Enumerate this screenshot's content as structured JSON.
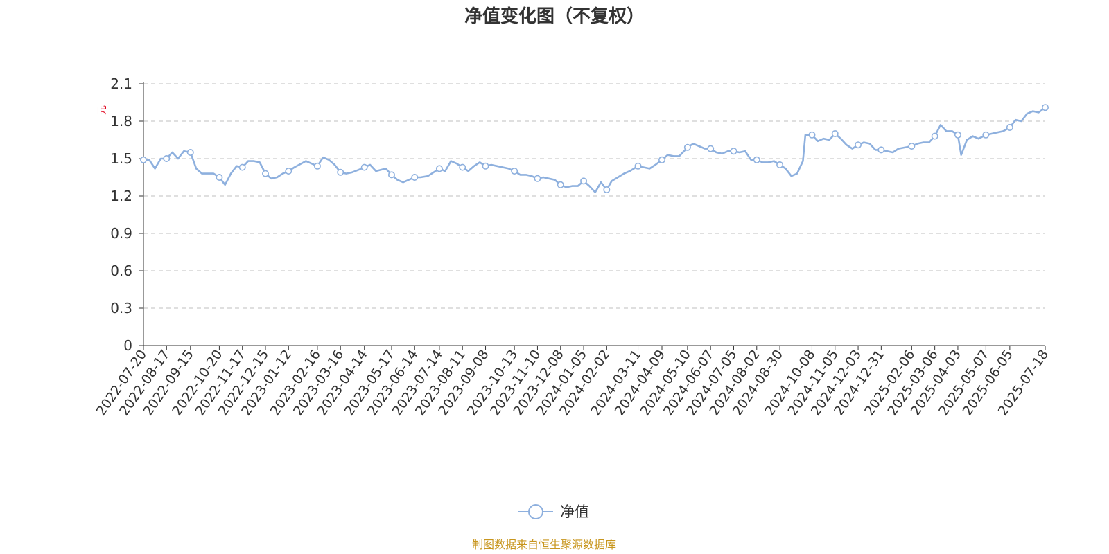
{
  "chart_data": {
    "type": "line",
    "title": "净值变化图（不复权）",
    "ylabel": "元",
    "ylim": [
      0,
      2.1
    ],
    "yticks": [
      "0",
      "0.3",
      "0.6",
      "0.9",
      "1.2",
      "1.5",
      "1.8",
      "2.1"
    ],
    "grid": true,
    "legend_position": "bottom-center",
    "x_start": "2022-07-20",
    "x_end": "2025-07-18",
    "xtick_labels": [
      "2022-07-20",
      "2022-08-17",
      "2022-09-15",
      "2022-10-20",
      "2022-11-17",
      "2022-12-15",
      "2023-01-12",
      "2023-02-16",
      "2023-03-16",
      "2023-04-14",
      "2023-05-17",
      "2023-06-14",
      "2023-07-14",
      "2023-08-11",
      "2023-09-08",
      "2023-10-13",
      "2023-11-10",
      "2023-12-08",
      "2024-01-05",
      "2024-02-02",
      "2024-03-11",
      "2024-04-09",
      "2024-05-10",
      "2024-06-07",
      "2024-07-05",
      "2024-08-02",
      "2024-08-30",
      "2024-10-08",
      "2024-11-05",
      "2024-12-03",
      "2024-12-31",
      "2025-02-06",
      "2025-03-06",
      "2025-04-03",
      "2025-05-07",
      "2025-06-05",
      "2025-07-18"
    ],
    "series": [
      {
        "name": "净值",
        "color": "#8eb0de",
        "x": [
          "2022-07-20",
          "2022-07-27",
          "2022-08-03",
          "2022-08-10",
          "2022-08-17",
          "2022-08-24",
          "2022-08-31",
          "2022-09-07",
          "2022-09-15",
          "2022-09-22",
          "2022-09-29",
          "2022-10-13",
          "2022-10-20",
          "2022-10-27",
          "2022-11-03",
          "2022-11-10",
          "2022-11-17",
          "2022-11-24",
          "2022-12-01",
          "2022-12-08",
          "2022-12-15",
          "2022-12-22",
          "2022-12-29",
          "2023-01-05",
          "2023-01-12",
          "2023-01-19",
          "2023-02-02",
          "2023-02-09",
          "2023-02-16",
          "2023-02-23",
          "2023-03-02",
          "2023-03-09",
          "2023-03-16",
          "2023-03-23",
          "2023-03-30",
          "2023-04-07",
          "2023-04-14",
          "2023-04-21",
          "2023-04-28",
          "2023-05-10",
          "2023-05-17",
          "2023-05-24",
          "2023-05-31",
          "2023-06-07",
          "2023-06-14",
          "2023-06-21",
          "2023-06-30",
          "2023-07-07",
          "2023-07-14",
          "2023-07-21",
          "2023-07-28",
          "2023-08-04",
          "2023-08-11",
          "2023-08-18",
          "2023-08-25",
          "2023-09-01",
          "2023-09-08",
          "2023-09-15",
          "2023-09-22",
          "2023-10-06",
          "2023-10-13",
          "2023-10-20",
          "2023-10-27",
          "2023-11-03",
          "2023-11-10",
          "2023-11-17",
          "2023-11-24",
          "2023-12-01",
          "2023-12-08",
          "2023-12-15",
          "2023-12-22",
          "2023-12-29",
          "2024-01-05",
          "2024-01-12",
          "2024-01-19",
          "2024-01-26",
          "2024-02-02",
          "2024-02-08",
          "2024-02-23",
          "2024-03-01",
          "2024-03-11",
          "2024-03-18",
          "2024-03-25",
          "2024-04-01",
          "2024-04-09",
          "2024-04-16",
          "2024-04-23",
          "2024-04-30",
          "2024-05-10",
          "2024-05-17",
          "2024-05-24",
          "2024-05-31",
          "2024-06-07",
          "2024-06-14",
          "2024-06-21",
          "2024-06-28",
          "2024-07-05",
          "2024-07-12",
          "2024-07-19",
          "2024-07-26",
          "2024-08-02",
          "2024-08-09",
          "2024-08-16",
          "2024-08-23",
          "2024-08-30",
          "2024-09-06",
          "2024-09-13",
          "2024-09-20",
          "2024-09-27",
          "2024-09-30",
          "2024-10-08",
          "2024-10-15",
          "2024-10-22",
          "2024-10-29",
          "2024-11-05",
          "2024-11-12",
          "2024-11-19",
          "2024-11-26",
          "2024-12-03",
          "2024-12-10",
          "2024-12-17",
          "2024-12-24",
          "2024-12-31",
          "2025-01-07",
          "2025-01-14",
          "2025-01-21",
          "2025-02-06",
          "2025-02-13",
          "2025-02-20",
          "2025-02-27",
          "2025-03-06",
          "2025-03-13",
          "2025-03-20",
          "2025-03-27",
          "2025-04-03",
          "2025-04-07",
          "2025-04-14",
          "2025-04-21",
          "2025-04-28",
          "2025-05-07",
          "2025-05-14",
          "2025-05-21",
          "2025-05-28",
          "2025-06-05",
          "2025-06-12",
          "2025-06-19",
          "2025-06-26",
          "2025-07-03",
          "2025-07-10",
          "2025-07-18"
        ],
        "y": [
          1.49,
          1.49,
          1.42,
          1.5,
          1.5,
          1.55,
          1.5,
          1.56,
          1.55,
          1.42,
          1.38,
          1.38,
          1.35,
          1.29,
          1.38,
          1.44,
          1.43,
          1.48,
          1.48,
          1.47,
          1.38,
          1.34,
          1.35,
          1.38,
          1.4,
          1.43,
          1.48,
          1.46,
          1.44,
          1.51,
          1.49,
          1.45,
          1.39,
          1.38,
          1.39,
          1.41,
          1.43,
          1.45,
          1.4,
          1.42,
          1.37,
          1.33,
          1.31,
          1.33,
          1.35,
          1.35,
          1.36,
          1.39,
          1.42,
          1.4,
          1.48,
          1.46,
          1.43,
          1.4,
          1.44,
          1.47,
          1.44,
          1.45,
          1.44,
          1.42,
          1.4,
          1.37,
          1.37,
          1.36,
          1.34,
          1.35,
          1.34,
          1.33,
          1.29,
          1.27,
          1.28,
          1.28,
          1.32,
          1.28,
          1.23,
          1.31,
          1.25,
          1.32,
          1.38,
          1.4,
          1.44,
          1.43,
          1.42,
          1.45,
          1.49,
          1.53,
          1.52,
          1.52,
          1.59,
          1.62,
          1.6,
          1.58,
          1.58,
          1.55,
          1.54,
          1.56,
          1.56,
          1.55,
          1.56,
          1.49,
          1.49,
          1.47,
          1.47,
          1.48,
          1.45,
          1.42,
          1.36,
          1.38,
          1.48,
          1.69,
          1.69,
          1.64,
          1.66,
          1.65,
          1.7,
          1.66,
          1.61,
          1.58,
          1.61,
          1.63,
          1.62,
          1.57,
          1.57,
          1.56,
          1.55,
          1.58,
          1.6,
          1.62,
          1.63,
          1.63,
          1.68,
          1.77,
          1.72,
          1.72,
          1.69,
          1.53,
          1.65,
          1.68,
          1.66,
          1.69,
          1.7,
          1.71,
          1.72,
          1.75,
          1.81,
          1.8,
          1.86,
          1.88,
          1.87,
          1.91
        ],
        "markers": [
          "2022-07-20",
          "2022-08-17",
          "2022-09-15",
          "2022-10-20",
          "2022-11-17",
          "2022-12-15",
          "2023-01-12",
          "2023-02-16",
          "2023-03-16",
          "2023-04-14",
          "2023-05-17",
          "2023-06-14",
          "2023-07-14",
          "2023-08-11",
          "2023-09-08",
          "2023-10-13",
          "2023-11-10",
          "2023-12-08",
          "2024-01-05",
          "2024-02-02",
          "2024-03-11",
          "2024-04-09",
          "2024-05-10",
          "2024-06-07",
          "2024-07-05",
          "2024-08-02",
          "2024-08-30",
          "2024-10-08",
          "2024-11-05",
          "2024-12-03",
          "2024-12-31",
          "2025-02-06",
          "2025-03-06",
          "2025-04-03",
          "2025-05-07",
          "2025-06-05",
          "2025-07-18"
        ]
      }
    ],
    "source_note": "制图数据来自恒生聚源数据库"
  },
  "colors": {
    "line": "#8eb0de",
    "axis": "#333333",
    "grid": "#cccccc",
    "unit": "#e0001b",
    "source": "#c8961e",
    "title": "#333333"
  }
}
